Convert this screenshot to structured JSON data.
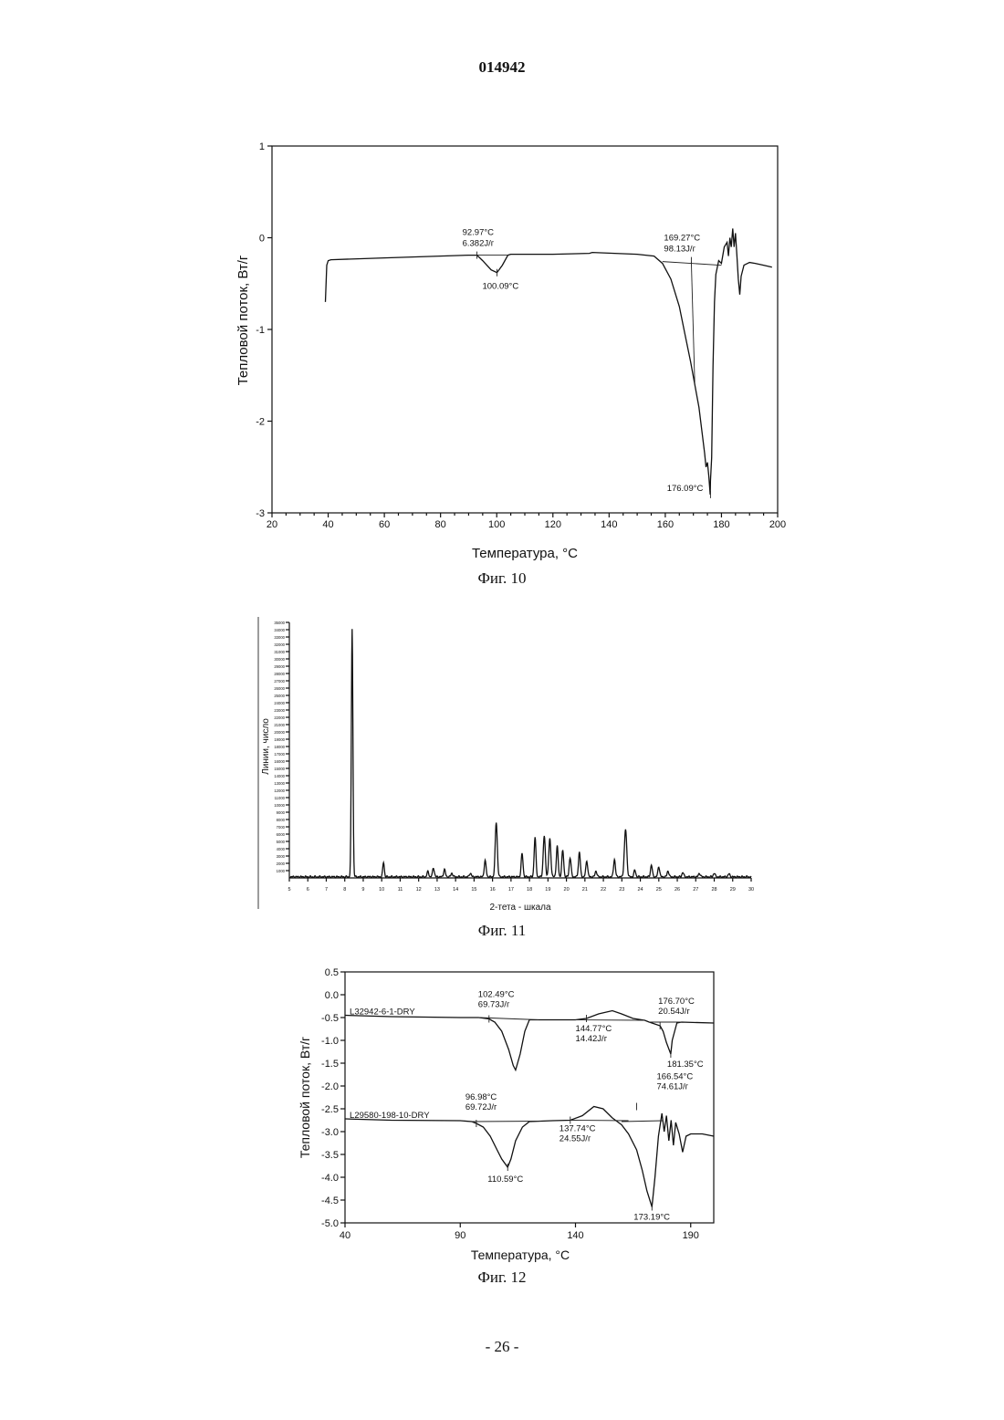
{
  "page": {
    "document_number": "014942",
    "page_footer": "- 26 -"
  },
  "figures": [
    {
      "caption": "Фиг. 10"
    },
    {
      "caption": "Фиг. 11"
    },
    {
      "caption": "Фиг. 12"
    }
  ],
  "chart_data": [
    {
      "type": "line",
      "xlabel": "Температура, °C",
      "ylabel": "Тепловой поток, Вт/г",
      "xlim": [
        20,
        200
      ],
      "ylim": [
        -3,
        1
      ],
      "x_ticks": [
        "20",
        "40",
        "60",
        "80",
        "100",
        "120",
        "140",
        "160",
        "180",
        "200"
      ],
      "y_ticks": [
        "1",
        "0",
        "-1",
        "-2",
        "-3"
      ],
      "series": [
        {
          "x": [
            39,
            39.5,
            40,
            41,
            60,
            90,
            92.97,
            95,
            98,
            100.09,
            102,
            104,
            105,
            120,
            133,
            134,
            150,
            156,
            159,
            162,
            165,
            167,
            169,
            170.5,
            172,
            173,
            174,
            174.5,
            175,
            175.5,
            176,
            176.1,
            176.5,
            177,
            177.5,
            178,
            179,
            180,
            181,
            182,
            182.5,
            183,
            183.5,
            184,
            184.5,
            185,
            185.5,
            186,
            186.5,
            187,
            188,
            190,
            192,
            195,
            198
          ],
          "y": [
            -0.7,
            -0.3,
            -0.25,
            -0.24,
            -0.22,
            -0.19,
            -0.19,
            -0.25,
            -0.35,
            -0.38,
            -0.3,
            -0.19,
            -0.18,
            -0.18,
            -0.17,
            -0.16,
            -0.18,
            -0.2,
            -0.28,
            -0.45,
            -0.75,
            -1.05,
            -1.35,
            -1.6,
            -1.85,
            -2.1,
            -2.35,
            -2.5,
            -2.45,
            -2.6,
            -2.8,
            -2.65,
            -2.4,
            -1.4,
            -0.7,
            -0.4,
            -0.25,
            -0.28,
            -0.1,
            -0.05,
            -0.2,
            0.0,
            -0.1,
            0.1,
            -0.1,
            0.05,
            -0.2,
            -0.45,
            -0.62,
            -0.42,
            -0.3,
            -0.27,
            -0.28,
            -0.3,
            -0.32
          ]
        }
      ],
      "annotations": [
        {
          "lines": [
            "92.97°C",
            "6.382J/г"
          ],
          "x": 92.97,
          "y": -0.19
        },
        {
          "lines": [
            "100.09°C"
          ],
          "x": 100.09,
          "y": -0.38
        },
        {
          "lines": [
            "169.27°C",
            "98.13J/г"
          ],
          "x": 169.27,
          "y": -0.25
        },
        {
          "lines": [
            "176.09°C"
          ],
          "x": 176.09,
          "y": -2.8
        }
      ]
    },
    {
      "type": "line",
      "xlabel": "2-тета - шкала",
      "ylabel": "Линии, число",
      "xlim": [
        5,
        30
      ],
      "ylim": [
        0,
        35000
      ],
      "x_ticks": [
        "5",
        "6",
        "7",
        "8",
        "9",
        "10",
        "11",
        "12",
        "13",
        "14",
        "15",
        "16",
        "17",
        "18",
        "19",
        "20",
        "21",
        "22",
        "23",
        "24",
        "25",
        "26",
        "27",
        "28",
        "29",
        "30"
      ],
      "y_ticks": [
        "1000",
        "2000",
        "3000",
        "4000",
        "5000",
        "6000",
        "7000",
        "8000",
        "9000",
        "10000",
        "11000",
        "12000",
        "13000",
        "14000",
        "15000",
        "16000",
        "17000",
        "18000",
        "19000",
        "20000",
        "21000",
        "22000",
        "23000",
        "24000",
        "25000",
        "26000",
        "27000",
        "28000",
        "29000",
        "30000",
        "31000",
        "32000",
        "33000",
        "34000",
        "35000"
      ],
      "series": [
        {
          "baseline": 150,
          "peaks": [
            {
              "x": 8.4,
              "h": 34000,
              "w": 0.06
            },
            {
              "x": 10.1,
              "h": 2000,
              "w": 0.06
            },
            {
              "x": 12.5,
              "h": 700,
              "w": 0.07
            },
            {
              "x": 12.8,
              "h": 1200,
              "w": 0.07
            },
            {
              "x": 13.4,
              "h": 1000,
              "w": 0.07
            },
            {
              "x": 13.8,
              "h": 500,
              "w": 0.07
            },
            {
              "x": 14.8,
              "h": 500,
              "w": 0.07
            },
            {
              "x": 15.6,
              "h": 2200,
              "w": 0.07
            },
            {
              "x": 16.2,
              "h": 7500,
              "w": 0.08
            },
            {
              "x": 17.6,
              "h": 3200,
              "w": 0.07
            },
            {
              "x": 18.3,
              "h": 5400,
              "w": 0.07
            },
            {
              "x": 18.8,
              "h": 5600,
              "w": 0.08
            },
            {
              "x": 19.1,
              "h": 5200,
              "w": 0.08
            },
            {
              "x": 19.5,
              "h": 4200,
              "w": 0.07
            },
            {
              "x": 19.8,
              "h": 3600,
              "w": 0.07
            },
            {
              "x": 20.2,
              "h": 2600,
              "w": 0.07
            },
            {
              "x": 20.7,
              "h": 3400,
              "w": 0.07
            },
            {
              "x": 21.1,
              "h": 2200,
              "w": 0.07
            },
            {
              "x": 21.6,
              "h": 800,
              "w": 0.07
            },
            {
              "x": 22.6,
              "h": 2400,
              "w": 0.07
            },
            {
              "x": 23.2,
              "h": 6500,
              "w": 0.09
            },
            {
              "x": 23.7,
              "h": 900,
              "w": 0.07
            },
            {
              "x": 24.6,
              "h": 1600,
              "w": 0.07
            },
            {
              "x": 25.0,
              "h": 1400,
              "w": 0.07
            },
            {
              "x": 25.5,
              "h": 800,
              "w": 0.07
            },
            {
              "x": 26.3,
              "h": 600,
              "w": 0.07
            },
            {
              "x": 27.2,
              "h": 500,
              "w": 0.07
            },
            {
              "x": 28.0,
              "h": 500,
              "w": 0.07
            },
            {
              "x": 28.8,
              "h": 400,
              "w": 0.07
            }
          ]
        }
      ]
    },
    {
      "type": "line",
      "xlabel": "Температура, °C",
      "ylabel": "Тепловой поток, Вт/г",
      "xlim": [
        40,
        200
      ],
      "ylim": [
        -5.0,
        0.5
      ],
      "x_ticks": [
        "40",
        "90",
        "140",
        "190"
      ],
      "y_ticks": [
        "0.5",
        "0.0",
        "-0.5",
        "-1.0",
        "-1.5",
        "-2.0",
        "-2.5",
        "-3.0",
        "-3.5",
        "-4.0",
        "-4.5",
        "-5.0"
      ],
      "series": [
        {
          "name": "L32942-6-1-DRY",
          "x": [
            40,
            60,
            90,
            98,
            102.49,
            105,
            108,
            111,
            113,
            114,
            116,
            118,
            120,
            130,
            140,
            144.77,
            150,
            156,
            160,
            165,
            170,
            172,
            176.7,
            178,
            179.5,
            181.35,
            182,
            184,
            186,
            200
          ],
          "y": [
            -0.45,
            -0.48,
            -0.5,
            -0.5,
            -0.53,
            -0.6,
            -0.8,
            -1.2,
            -1.55,
            -1.65,
            -1.3,
            -0.8,
            -0.55,
            -0.55,
            -0.55,
            -0.52,
            -0.42,
            -0.35,
            -0.42,
            -0.52,
            -0.56,
            -0.6,
            -0.68,
            -0.8,
            -1.05,
            -1.3,
            -1.0,
            -0.62,
            -0.6,
            -0.62
          ]
        },
        {
          "name": "L29580-198-10-DRY",
          "x": [
            40,
            60,
            90,
            95,
            96.98,
            100,
            103,
            106,
            108,
            110.59,
            112,
            114,
            117,
            120,
            130,
            137.74,
            143,
            148,
            152,
            156,
            160,
            163,
            166.54,
            169,
            171,
            173.19,
            174.5,
            176,
            177.5,
            178.5,
            179.5,
            180.5,
            181.5,
            182.5,
            183.5,
            185,
            186.5,
            188,
            190,
            195,
            200
          ],
          "y": [
            -2.72,
            -2.75,
            -2.76,
            -2.78,
            -2.82,
            -2.9,
            -3.1,
            -3.4,
            -3.6,
            -3.78,
            -3.6,
            -3.2,
            -2.9,
            -2.78,
            -2.76,
            -2.75,
            -2.65,
            -2.45,
            -2.5,
            -2.7,
            -2.85,
            -3.05,
            -3.4,
            -3.85,
            -4.3,
            -4.65,
            -4.0,
            -3.1,
            -2.6,
            -3.0,
            -2.65,
            -3.2,
            -2.75,
            -3.3,
            -2.8,
            -3.05,
            -3.45,
            -3.1,
            -3.05,
            -3.05,
            -3.1
          ]
        }
      ],
      "annotations": [
        {
          "lines": [
            "102.49°C",
            "69.73J/г"
          ],
          "x": 102.49,
          "y": -0.53
        },
        {
          "lines": [
            "144.77°C",
            "14.42J/г"
          ],
          "x": 144.77,
          "y": -0.52
        },
        {
          "lines": [
            "176.70°C",
            "20.54J/г"
          ],
          "x": 176.7,
          "y": -0.68
        },
        {
          "lines": [
            "181.35°C"
          ],
          "x": 181.35,
          "y": -1.3
        },
        {
          "lines": [
            "96.98°C",
            "69.72J/г"
          ],
          "x": 96.98,
          "y": -2.82
        },
        {
          "lines": [
            "110.59°C"
          ],
          "x": 110.59,
          "y": -3.78
        },
        {
          "lines": [
            "137.74°C",
            "24.55J/г"
          ],
          "x": 137.74,
          "y": -2.75
        },
        {
          "lines": [
            "166.54°C",
            "74.61J/г"
          ],
          "x": 166.54,
          "y": -2.45
        },
        {
          "lines": [
            "173.19°C"
          ],
          "x": 173.19,
          "y": -4.65
        }
      ]
    }
  ]
}
